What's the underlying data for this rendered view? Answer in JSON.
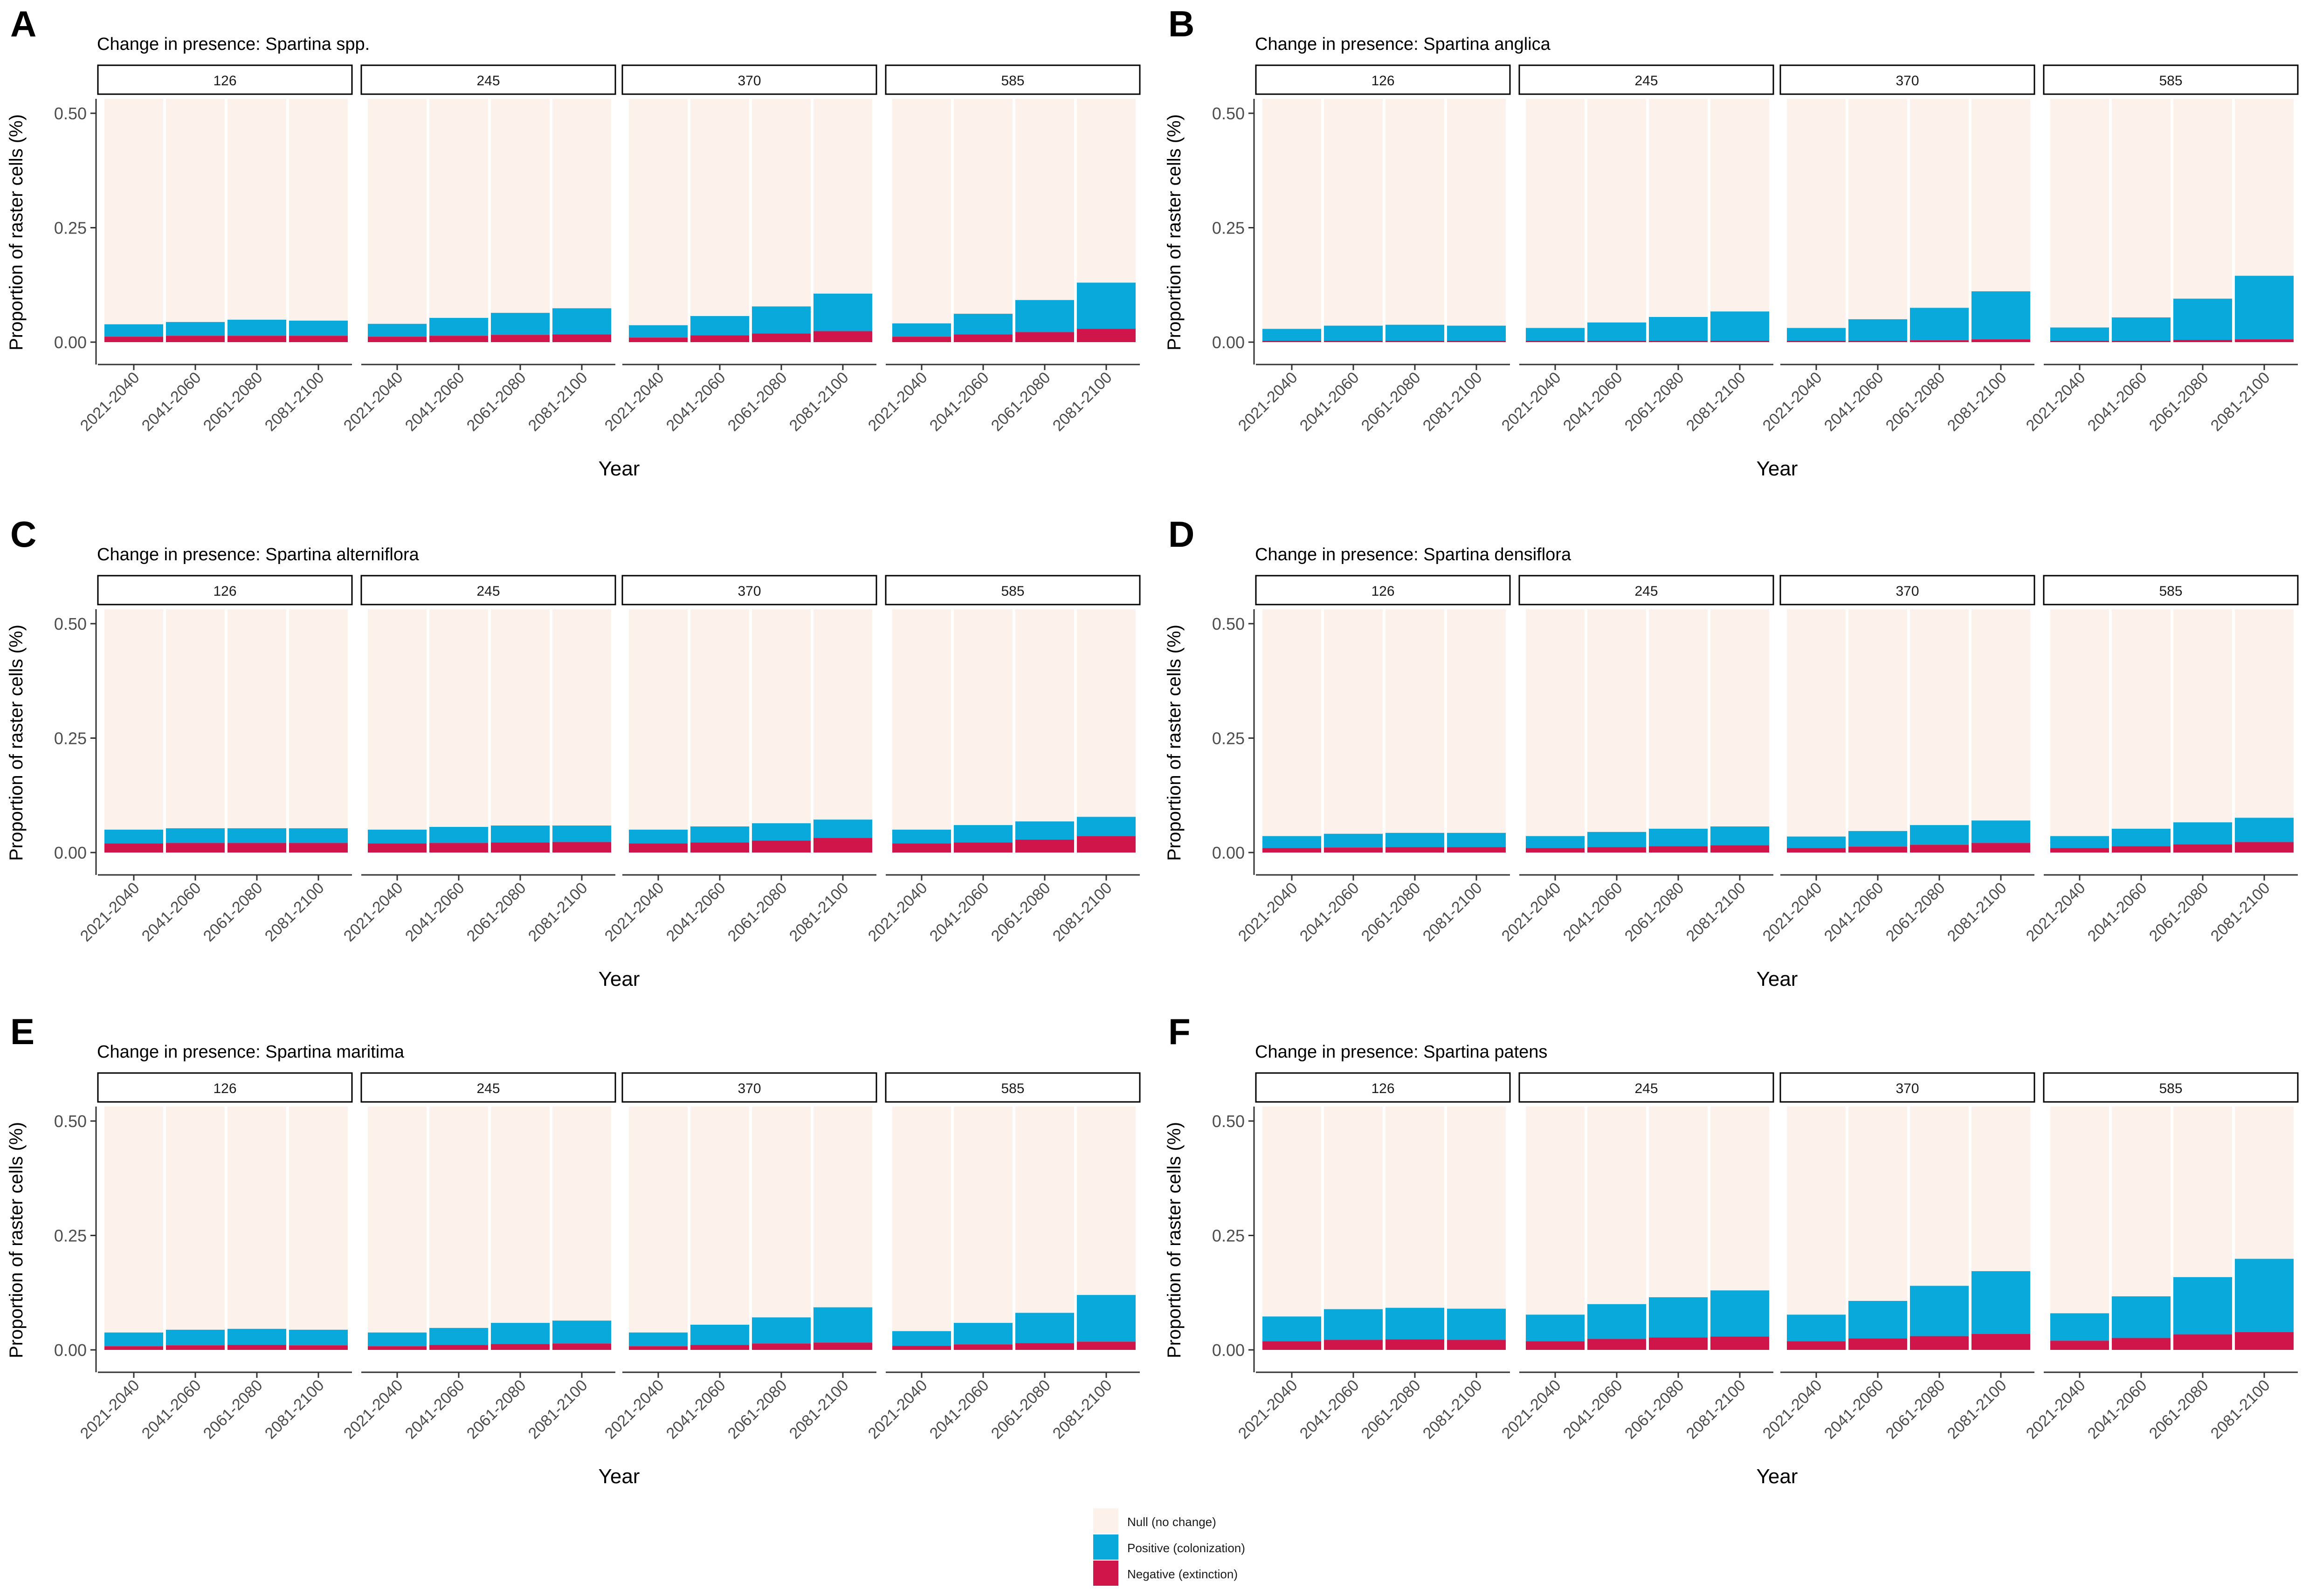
{
  "colors": {
    "null": "#fdf1ec",
    "positive": "#0aa9dc",
    "negative": "#d0154b",
    "axis": "#333333",
    "strip_border": "#000000"
  },
  "legend": {
    "items": [
      {
        "key": "null",
        "label": "Null (no change)"
      },
      {
        "key": "positive",
        "label": "Positive (colonization)"
      },
      {
        "key": "negative",
        "label": "Negative (extinction)"
      }
    ]
  },
  "chart_data": [
    {
      "type": "bar",
      "stacked": true,
      "panel_letter": "A",
      "title": "Change in presence: Spartina spp.",
      "xlabel": "Year",
      "ylabel": "Proportion of raster cells (%)",
      "ylim": [
        0,
        0.5
      ],
      "yticks": [
        "0.00",
        "0.25",
        "0.50"
      ],
      "facets": [
        "126",
        "245",
        "370",
        "585"
      ],
      "categories": [
        "2021-2040",
        "2041-2060",
        "2061-2080",
        "2081-2100"
      ],
      "series": [
        {
          "name": "Negative (extinction)",
          "values": [
            [
              0.012,
              0.014,
              0.014,
              0.014
            ],
            [
              0.012,
              0.014,
              0.016,
              0.017
            ],
            [
              0.01,
              0.015,
              0.019,
              0.024
            ],
            [
              0.012,
              0.017,
              0.022,
              0.029
            ]
          ]
        },
        {
          "name": "Positive (colonization)",
          "values": [
            [
              0.027,
              0.03,
              0.035,
              0.033
            ],
            [
              0.028,
              0.039,
              0.048,
              0.057
            ],
            [
              0.027,
              0.042,
              0.059,
              0.082
            ],
            [
              0.029,
              0.045,
              0.07,
              0.101
            ]
          ]
        }
      ]
    },
    {
      "type": "bar",
      "stacked": true,
      "panel_letter": "B",
      "title": "Change in presence: Spartina anglica",
      "xlabel": "Year",
      "ylabel": "Proportion of raster cells (%)",
      "ylim": [
        0,
        0.5
      ],
      "yticks": [
        "0.00",
        "0.25",
        "0.50"
      ],
      "facets": [
        "126",
        "245",
        "370",
        "585"
      ],
      "categories": [
        "2021-2040",
        "2041-2060",
        "2061-2080",
        "2081-2100"
      ],
      "series": [
        {
          "name": "Negative (extinction)",
          "values": [
            [
              0.003,
              0.003,
              0.003,
              0.003
            ],
            [
              0.003,
              0.003,
              0.003,
              0.003
            ],
            [
              0.003,
              0.003,
              0.004,
              0.006
            ],
            [
              0.003,
              0.003,
              0.005,
              0.006
            ]
          ]
        },
        {
          "name": "Positive (colonization)",
          "values": [
            [
              0.026,
              0.033,
              0.035,
              0.033
            ],
            [
              0.028,
              0.04,
              0.052,
              0.064
            ],
            [
              0.028,
              0.047,
              0.071,
              0.105
            ],
            [
              0.029,
              0.051,
              0.09,
              0.139
            ]
          ]
        }
      ]
    },
    {
      "type": "bar",
      "stacked": true,
      "panel_letter": "C",
      "title": "Change in presence: Spartina alterniflora",
      "xlabel": "Year",
      "ylabel": "Proportion of raster cells (%)",
      "ylim": [
        0,
        0.5
      ],
      "yticks": [
        "0.00",
        "0.25",
        "0.50"
      ],
      "facets": [
        "126",
        "245",
        "370",
        "585"
      ],
      "categories": [
        "2021-2040",
        "2041-2060",
        "2061-2080",
        "2081-2100"
      ],
      "series": [
        {
          "name": "Negative (extinction)",
          "values": [
            [
              0.02,
              0.021,
              0.021,
              0.021
            ],
            [
              0.02,
              0.021,
              0.022,
              0.023
            ],
            [
              0.02,
              0.022,
              0.026,
              0.032
            ],
            [
              0.02,
              0.022,
              0.028,
              0.036
            ]
          ]
        },
        {
          "name": "Positive (colonization)",
          "values": [
            [
              0.03,
              0.032,
              0.032,
              0.032
            ],
            [
              0.03,
              0.035,
              0.037,
              0.036
            ],
            [
              0.03,
              0.035,
              0.038,
              0.04
            ],
            [
              0.03,
              0.038,
              0.04,
              0.042
            ]
          ]
        }
      ]
    },
    {
      "type": "bar",
      "stacked": true,
      "panel_letter": "D",
      "title": "Change in presence: Spartina densiflora",
      "xlabel": "Year",
      "ylabel": "Proportion of raster cells (%)",
      "ylim": [
        0,
        0.5
      ],
      "yticks": [
        "0.00",
        "0.25",
        "0.50"
      ],
      "facets": [
        "126",
        "245",
        "370",
        "585"
      ],
      "categories": [
        "2021-2040",
        "2041-2060",
        "2061-2080",
        "2081-2100"
      ],
      "series": [
        {
          "name": "Negative (extinction)",
          "values": [
            [
              0.01,
              0.011,
              0.012,
              0.012
            ],
            [
              0.01,
              0.012,
              0.014,
              0.016
            ],
            [
              0.01,
              0.013,
              0.017,
              0.021
            ],
            [
              0.01,
              0.014,
              0.018,
              0.023
            ]
          ]
        },
        {
          "name": "Positive (colonization)",
          "values": [
            [
              0.026,
              0.03,
              0.031,
              0.031
            ],
            [
              0.026,
              0.033,
              0.038,
              0.041
            ],
            [
              0.025,
              0.034,
              0.043,
              0.049
            ],
            [
              0.026,
              0.038,
              0.048,
              0.053
            ]
          ]
        }
      ]
    },
    {
      "type": "bar",
      "stacked": true,
      "panel_letter": "E",
      "title": "Change in presence: Spartina maritima",
      "xlabel": "Year",
      "ylabel": "Proportion of raster cells (%)",
      "ylim": [
        0,
        0.5
      ],
      "yticks": [
        "0.00",
        "0.25",
        "0.50"
      ],
      "facets": [
        "126",
        "245",
        "370",
        "585"
      ],
      "categories": [
        "2021-2040",
        "2041-2060",
        "2061-2080",
        "2081-2100"
      ],
      "series": [
        {
          "name": "Negative (extinction)",
          "values": [
            [
              0.008,
              0.01,
              0.011,
              0.01
            ],
            [
              0.008,
              0.011,
              0.013,
              0.014
            ],
            [
              0.008,
              0.011,
              0.014,
              0.016
            ],
            [
              0.009,
              0.012,
              0.015,
              0.018
            ]
          ]
        },
        {
          "name": "Positive (colonization)",
          "values": [
            [
              0.03,
              0.034,
              0.035,
              0.034
            ],
            [
              0.03,
              0.037,
              0.046,
              0.05
            ],
            [
              0.03,
              0.044,
              0.057,
              0.077
            ],
            [
              0.032,
              0.047,
              0.066,
              0.102
            ]
          ]
        }
      ]
    },
    {
      "type": "bar",
      "stacked": true,
      "panel_letter": "F",
      "title": "Change in presence: Spartina patens",
      "xlabel": "Year",
      "ylabel": "Proportion of raster cells (%)",
      "ylim": [
        0,
        0.5
      ],
      "yticks": [
        "0.00",
        "0.25",
        "0.50"
      ],
      "facets": [
        "126",
        "245",
        "370",
        "585"
      ],
      "categories": [
        "2021-2040",
        "2041-2060",
        "2061-2080",
        "2081-2100"
      ],
      "series": [
        {
          "name": "Negative (extinction)",
          "values": [
            [
              0.019,
              0.022,
              0.023,
              0.022
            ],
            [
              0.019,
              0.024,
              0.027,
              0.029
            ],
            [
              0.019,
              0.025,
              0.03,
              0.035
            ],
            [
              0.02,
              0.026,
              0.034,
              0.039
            ]
          ]
        },
        {
          "name": "Positive (colonization)",
          "values": [
            [
              0.054,
              0.067,
              0.069,
              0.068
            ],
            [
              0.058,
              0.076,
              0.088,
              0.101
            ],
            [
              0.058,
              0.082,
              0.11,
              0.137
            ],
            [
              0.06,
              0.091,
              0.125,
              0.16
            ]
          ]
        }
      ]
    }
  ]
}
